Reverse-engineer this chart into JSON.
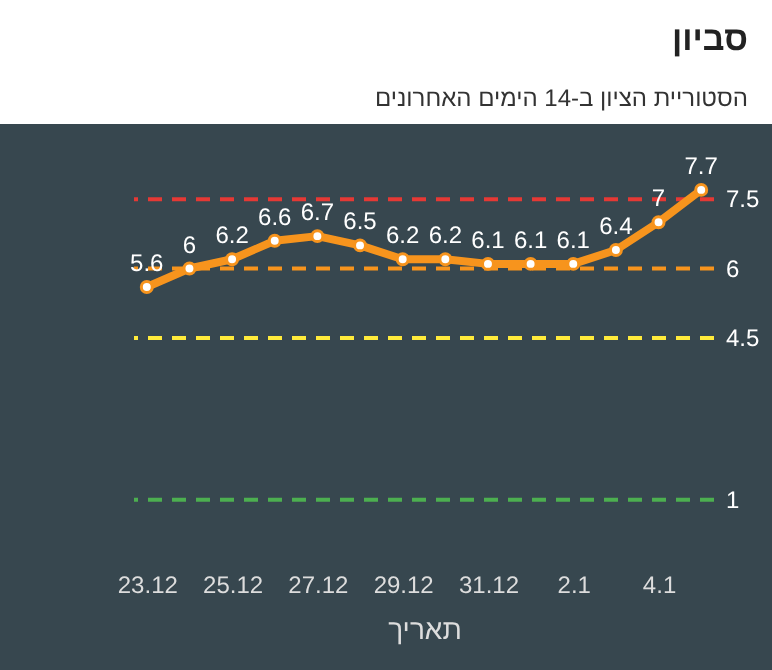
{
  "chart_data": {
    "type": "line",
    "title": "סביון",
    "subtitle": "הסטוריית הציון ב-14 הימים האחרונים",
    "xlabel": "תאריך",
    "categories": [
      "23.12",
      null,
      "25.12",
      null,
      "27.12",
      null,
      "29.12",
      null,
      "31.12",
      null,
      "2.1",
      null,
      "4.1",
      null
    ],
    "series": [
      {
        "color": "#f7941d",
        "values": [
          5.6,
          6,
          6.2,
          6.6,
          6.7,
          6.5,
          6.2,
          6.2,
          6.1,
          6.1,
          6.1,
          6.4,
          7,
          7.7
        ]
      }
    ],
    "tick_labels": "x",
    "data_labels": true,
    "marker": "circle",
    "line_style": "solid",
    "grid": false,
    "ref_lines": [
      {
        "axis": "y",
        "value": 7.5,
        "label": "7.5",
        "color": "#e53935",
        "line_style": "dashed"
      },
      {
        "axis": "y",
        "value": 6,
        "label": "6",
        "color": "#f7941d",
        "line_style": "dashed"
      },
      {
        "axis": "y",
        "value": 4.5,
        "label": "4.5",
        "color": "#ffeb3b",
        "line_style": "dashed"
      },
      {
        "axis": "y",
        "value": 1,
        "label": "1",
        "color": "#4caf50",
        "line_style": "dashed"
      }
    ]
  }
}
